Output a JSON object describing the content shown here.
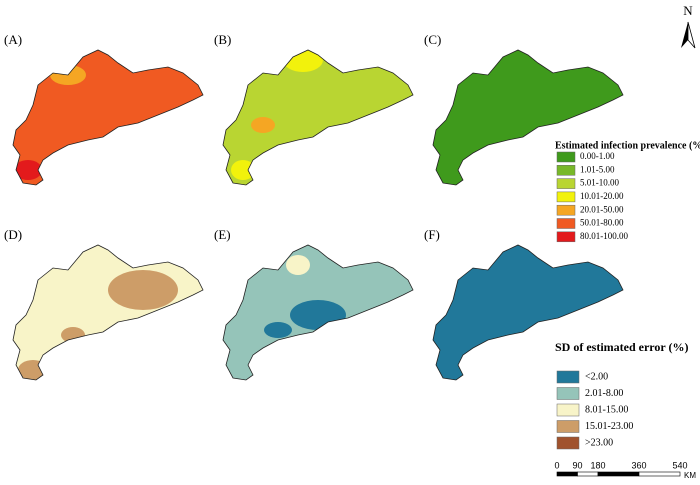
{
  "panels": [
    "(A)",
    "(B)",
    "(C)",
    "(D)",
    "(E)",
    "(F)"
  ],
  "north": "N",
  "legend_prevalence": {
    "title": "Estimated infection prevalence (%)",
    "items": [
      {
        "label": "0.00-1.00",
        "color": "#3f9a1c"
      },
      {
        "label": "1.01-5.00",
        "color": "#78b829"
      },
      {
        "label": "5.01-10.00",
        "color": "#b9d532"
      },
      {
        "label": "10.01-20.00",
        "color": "#f2f20c"
      },
      {
        "label": "20.01-50.00",
        "color": "#f5a623"
      },
      {
        "label": "50.01-80.00",
        "color": "#f05a22"
      },
      {
        "label": "80.01-100.00",
        "color": "#e31a1c"
      }
    ]
  },
  "legend_sd": {
    "title": "SD of estimated error (%)",
    "items": [
      {
        "label": "<2.00",
        "color": "#21789a"
      },
      {
        "label": "2.01-8.00",
        "color": "#95c4b9"
      },
      {
        "label": "8.01-15.00",
        "color": "#f8f4c8"
      },
      {
        "label": "15.01-23.00",
        "color": "#cd9d68"
      },
      {
        "label": ">23.00",
        "color": "#a0522d"
      }
    ]
  },
  "scale_bar": {
    "ticks": [
      0,
      90,
      180,
      360,
      540
    ],
    "unit": "KM"
  }
}
